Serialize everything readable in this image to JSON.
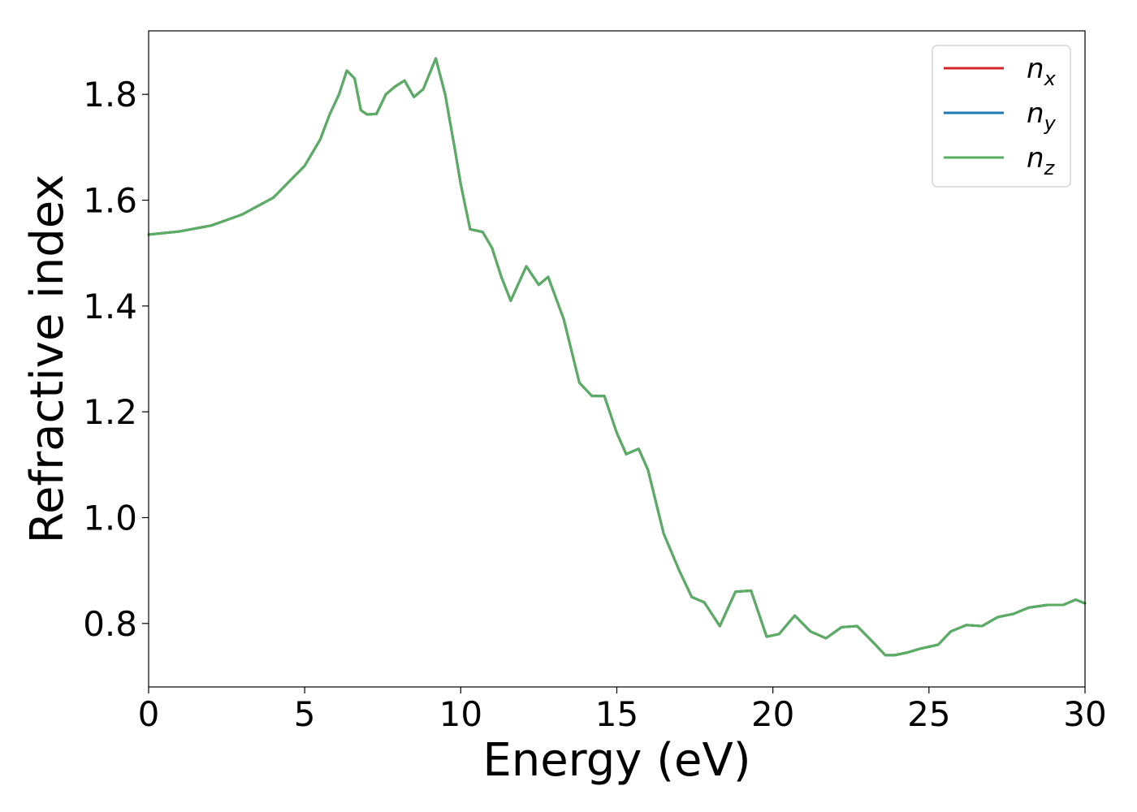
{
  "chart_data": {
    "type": "line",
    "xlabel": "Energy (eV)",
    "ylabel": "Refractive index",
    "xlim": [
      0,
      30
    ],
    "ylim": [
      0.68,
      1.92
    ],
    "x_ticks": [
      0,
      5,
      10,
      15,
      20,
      25,
      30
    ],
    "y_ticks": [
      0.8,
      1.0,
      1.2,
      1.4,
      1.6,
      1.8
    ],
    "grid": false,
    "legend_position": "top-right",
    "series": [
      {
        "name": "n",
        "subscript": "x",
        "color": "#d62728",
        "x": [
          0,
          1,
          2,
          3,
          4,
          5,
          5.5,
          5.8,
          6.1,
          6.35,
          6.6,
          6.8,
          7.0,
          7.3,
          7.6,
          7.9,
          8.2,
          8.5,
          8.8,
          9.2,
          9.5,
          9.8,
          10.0,
          10.3,
          10.7,
          11.0,
          11.3,
          11.6,
          12.1,
          12.5,
          12.8,
          13.3,
          13.8,
          14.2,
          14.6,
          15.0,
          15.3,
          15.7,
          16.0,
          16.5,
          17.0,
          17.4,
          17.8,
          18.3,
          18.8,
          19.3,
          19.8,
          20.2,
          20.7,
          21.2,
          21.7,
          22.2,
          22.7,
          23.2,
          23.6,
          23.9,
          24.3,
          24.7,
          25.3,
          25.7,
          26.2,
          26.7,
          27.2,
          27.7,
          28.2,
          28.8,
          29.3,
          29.7,
          30.0
        ],
        "y": [
          1.535,
          1.541,
          1.552,
          1.573,
          1.605,
          1.665,
          1.715,
          1.762,
          1.8,
          1.845,
          1.83,
          1.77,
          1.762,
          1.763,
          1.8,
          1.815,
          1.826,
          1.795,
          1.81,
          1.868,
          1.8,
          1.7,
          1.63,
          1.545,
          1.54,
          1.51,
          1.455,
          1.41,
          1.475,
          1.44,
          1.455,
          1.375,
          1.255,
          1.23,
          1.23,
          1.16,
          1.12,
          1.13,
          1.09,
          0.97,
          0.9,
          0.85,
          0.84,
          0.795,
          0.86,
          0.862,
          0.775,
          0.78,
          0.815,
          0.785,
          0.772,
          0.793,
          0.795,
          0.765,
          0.74,
          0.74,
          0.745,
          0.752,
          0.76,
          0.785,
          0.797,
          0.795,
          0.812,
          0.818,
          0.83,
          0.835,
          0.835,
          0.845,
          0.838
        ]
      },
      {
        "name": "n",
        "subscript": "y",
        "color": "#1f77b4",
        "x": [
          0,
          1,
          2,
          3,
          4,
          5,
          5.5,
          5.8,
          6.1,
          6.35,
          6.6,
          6.8,
          7.0,
          7.3,
          7.6,
          7.9,
          8.2,
          8.5,
          8.8,
          9.2,
          9.5,
          9.8,
          10.0,
          10.3,
          10.7,
          11.0,
          11.3,
          11.6,
          12.1,
          12.5,
          12.8,
          13.3,
          13.8,
          14.2,
          14.6,
          15.0,
          15.3,
          15.7,
          16.0,
          16.5,
          17.0,
          17.4,
          17.8,
          18.3,
          18.8,
          19.3,
          19.8,
          20.2,
          20.7,
          21.2,
          21.7,
          22.2,
          22.7,
          23.2,
          23.6,
          23.9,
          24.3,
          24.7,
          25.3,
          25.7,
          26.2,
          26.7,
          27.2,
          27.7,
          28.2,
          28.8,
          29.3,
          29.7,
          30.0
        ],
        "y": [
          1.535,
          1.541,
          1.552,
          1.573,
          1.605,
          1.665,
          1.715,
          1.762,
          1.8,
          1.845,
          1.83,
          1.77,
          1.762,
          1.763,
          1.8,
          1.815,
          1.826,
          1.795,
          1.81,
          1.868,
          1.8,
          1.7,
          1.63,
          1.545,
          1.54,
          1.51,
          1.455,
          1.41,
          1.475,
          1.44,
          1.455,
          1.375,
          1.255,
          1.23,
          1.23,
          1.16,
          1.12,
          1.13,
          1.09,
          0.97,
          0.9,
          0.85,
          0.84,
          0.795,
          0.86,
          0.862,
          0.775,
          0.78,
          0.815,
          0.785,
          0.772,
          0.793,
          0.795,
          0.765,
          0.74,
          0.74,
          0.745,
          0.752,
          0.76,
          0.785,
          0.797,
          0.795,
          0.812,
          0.818,
          0.83,
          0.835,
          0.835,
          0.845,
          0.838
        ]
      },
      {
        "name": "n",
        "subscript": "z",
        "color": "#5aae61",
        "x": [
          0,
          1,
          2,
          3,
          4,
          5,
          5.5,
          5.8,
          6.1,
          6.35,
          6.6,
          6.8,
          7.0,
          7.3,
          7.6,
          7.9,
          8.2,
          8.5,
          8.8,
          9.2,
          9.5,
          9.8,
          10.0,
          10.3,
          10.7,
          11.0,
          11.3,
          11.6,
          12.1,
          12.5,
          12.8,
          13.3,
          13.8,
          14.2,
          14.6,
          15.0,
          15.3,
          15.7,
          16.0,
          16.5,
          17.0,
          17.4,
          17.8,
          18.3,
          18.8,
          19.3,
          19.8,
          20.2,
          20.7,
          21.2,
          21.7,
          22.2,
          22.7,
          23.2,
          23.6,
          23.9,
          24.3,
          24.7,
          25.3,
          25.7,
          26.2,
          26.7,
          27.2,
          27.7,
          28.2,
          28.8,
          29.3,
          29.7,
          30.0
        ],
        "y": [
          1.535,
          1.541,
          1.552,
          1.573,
          1.605,
          1.665,
          1.715,
          1.762,
          1.8,
          1.845,
          1.83,
          1.77,
          1.762,
          1.763,
          1.8,
          1.815,
          1.826,
          1.795,
          1.81,
          1.868,
          1.8,
          1.7,
          1.63,
          1.545,
          1.54,
          1.51,
          1.455,
          1.41,
          1.475,
          1.44,
          1.455,
          1.375,
          1.255,
          1.23,
          1.23,
          1.16,
          1.12,
          1.13,
          1.09,
          0.97,
          0.9,
          0.85,
          0.84,
          0.795,
          0.86,
          0.862,
          0.775,
          0.78,
          0.815,
          0.785,
          0.772,
          0.793,
          0.795,
          0.765,
          0.74,
          0.74,
          0.745,
          0.752,
          0.76,
          0.785,
          0.797,
          0.795,
          0.812,
          0.818,
          0.83,
          0.835,
          0.835,
          0.845,
          0.838
        ]
      }
    ]
  }
}
